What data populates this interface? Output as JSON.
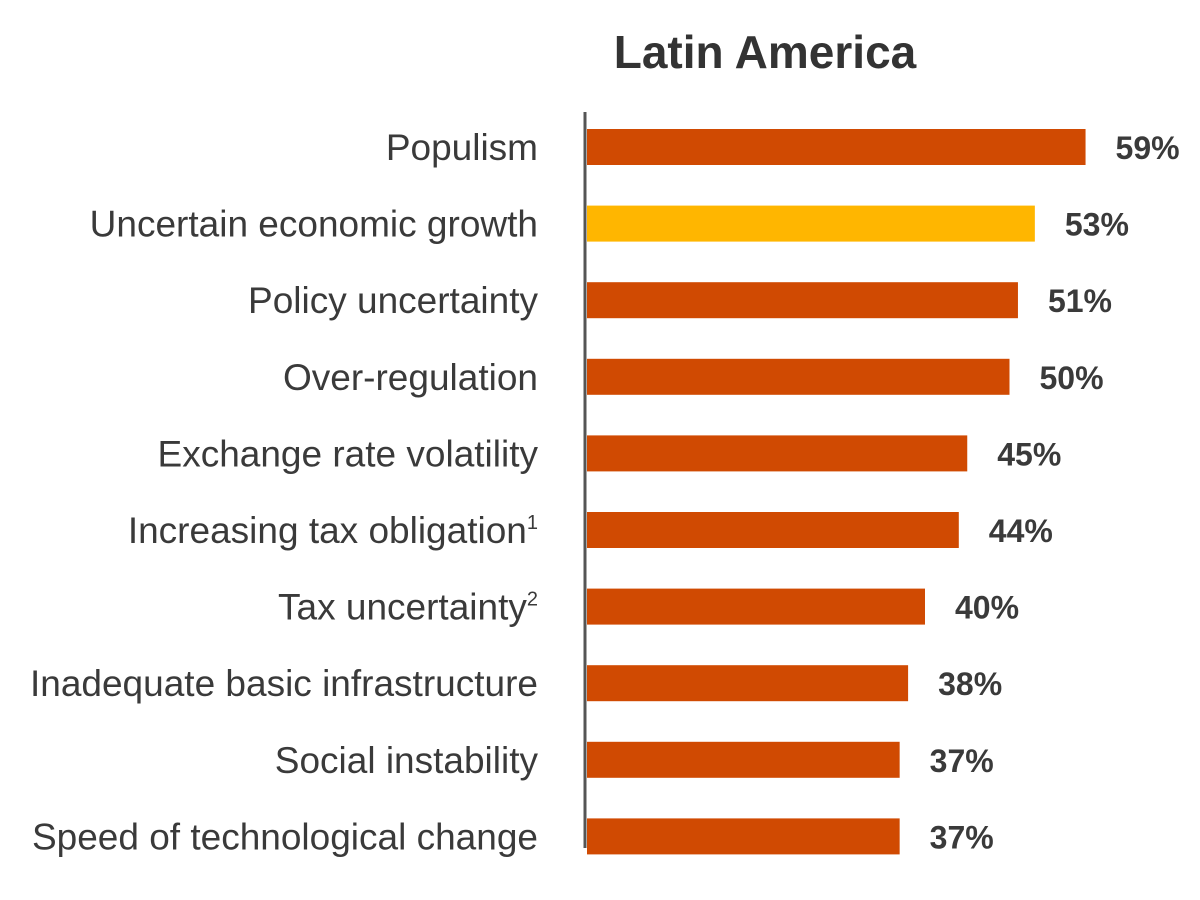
{
  "chart_data": {
    "type": "bar",
    "orientation": "horizontal",
    "title": "Latin America",
    "categories": [
      "Populism",
      "Uncertain economic growth",
      "Policy uncertainty",
      "Over-regulation",
      "Exchange rate volatility",
      "Increasing tax obligation",
      "Tax uncertainty",
      "Inadequate basic infrastructure",
      "Social instability",
      "Speed of technological change"
    ],
    "superscripts": [
      "",
      "",
      "",
      "",
      "",
      "1",
      "2",
      "",
      "",
      ""
    ],
    "values": [
      59,
      53,
      51,
      50,
      45,
      44,
      40,
      38,
      37,
      37
    ],
    "value_labels": [
      "59%",
      "53%",
      "51%",
      "50%",
      "45%",
      "44%",
      "40%",
      "38%",
      "37%",
      "37%"
    ],
    "highlight_index": 1,
    "unit": "%",
    "xlabel": "",
    "ylabel": "",
    "xlim": [
      0,
      60
    ],
    "grid": false,
    "colors": {
      "bar": "#d04a02",
      "highlight": "#ffb600",
      "axis": "#555555",
      "text": "#3a3a3a"
    }
  }
}
